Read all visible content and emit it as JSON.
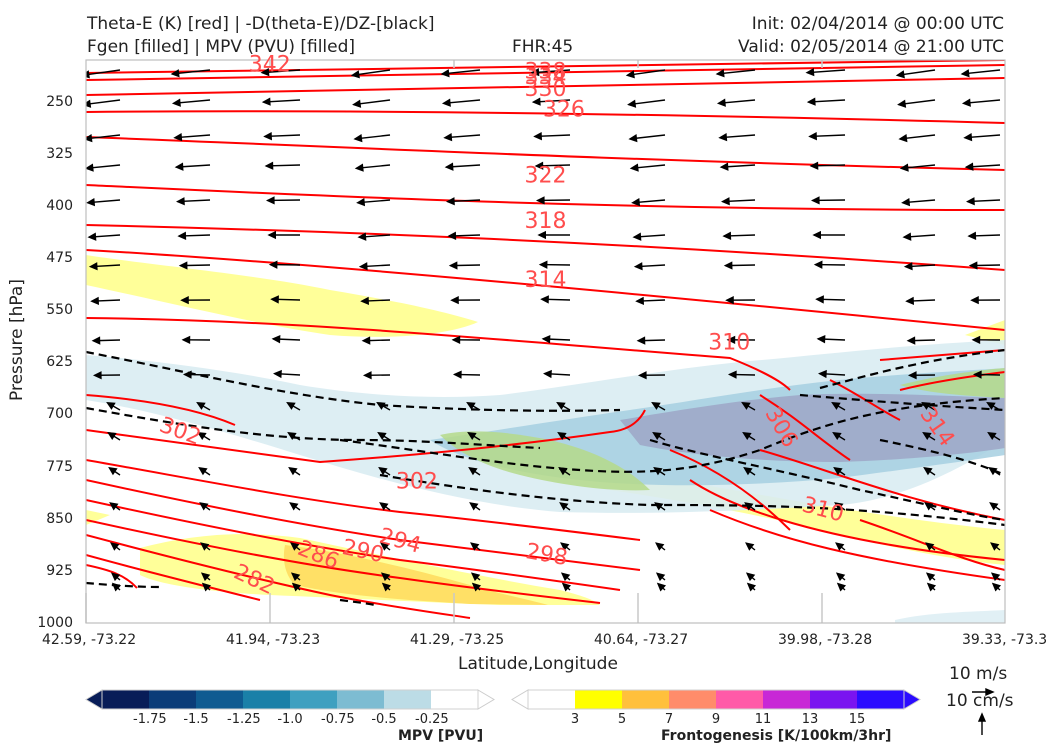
{
  "header": {
    "left_line1": "Theta-E (K) [red] | -D(theta-E)/DZ-[black]",
    "left_line2": "Fgen [filled] | MPV (PVU) [filled]",
    "center": "FHR:45",
    "init": "Init: 02/04/2014 @ 00:00 UTC",
    "valid": "Valid: 02/05/2014 @ 21:00 UTC"
  },
  "colors": {
    "theta_e": "#ff0000",
    "theta_e_label": "#ff4d4d",
    "stability": "#000000",
    "fgen_3": "#ffff99",
    "fgen_5": "#ffe066",
    "mpv_light": "#d9ecf2",
    "mpv_mid": "#a6cfe0",
    "mpv_dark": "#9fa8c8",
    "green_overlap": "#b5d98a"
  },
  "chart_data": {
    "type": "cross-section",
    "xlabel": "Latitude,Longitude",
    "ylabel": "Pressure [hPa]",
    "x_ticks": [
      "42.59, -73.22",
      "41.94, -73.23",
      "41.29, -73.25",
      "40.64, -73.27",
      "39.98, -73.28",
      "39.33, -73.3"
    ],
    "y_ticks": [
      250,
      325,
      400,
      475,
      550,
      625,
      700,
      775,
      850,
      925,
      1000
    ],
    "ylim": [
      1000,
      190
    ],
    "y_scale": "linear",
    "theta_e_contour_labels": [
      {
        "value": "342",
        "x": 0.2,
        "p": 195
      },
      {
        "value": "338",
        "x": 0.5,
        "p": 205
      },
      {
        "value": "334",
        "x": 0.5,
        "p": 213
      },
      {
        "value": "330",
        "x": 0.5,
        "p": 230
      },
      {
        "value": "326",
        "x": 0.52,
        "p": 260
      },
      {
        "value": "322",
        "x": 0.5,
        "p": 355
      },
      {
        "value": "318",
        "x": 0.5,
        "p": 420
      },
      {
        "value": "314",
        "x": 0.5,
        "p": 505
      },
      {
        "value": "310",
        "x": 0.7,
        "p": 595
      },
      {
        "value": "306",
        "x": 0.75,
        "p": 712
      },
      {
        "value": "314",
        "x": 0.92,
        "p": 712
      },
      {
        "value": "302",
        "x": 0.1,
        "p": 722
      },
      {
        "value": "302",
        "x": 0.36,
        "p": 795
      },
      {
        "value": "310",
        "x": 0.8,
        "p": 835
      },
      {
        "value": "294",
        "x": 0.34,
        "p": 880
      },
      {
        "value": "290",
        "x": 0.3,
        "p": 895
      },
      {
        "value": "286",
        "x": 0.25,
        "p": 900
      },
      {
        "value": "298",
        "x": 0.5,
        "p": 900
      },
      {
        "value": "282",
        "x": 0.18,
        "p": 935
      }
    ],
    "wind_reference": {
      "horizontal": "10 m/s",
      "vertical": "10 cm/s"
    }
  },
  "colorbars": {
    "mpv": {
      "title": "MPV [PVU]",
      "labels": [
        "-1.75",
        "-1.5",
        "-1.25",
        "-1.0",
        "-0.75",
        "-0.5",
        "-0.25"
      ],
      "colors": [
        "#081d58",
        "#0b3c78",
        "#0f5b91",
        "#1a80a8",
        "#3fa0c0",
        "#7dbcd2",
        "#bcdce6",
        "#ffffff"
      ]
    },
    "fgen": {
      "title": "Frontogenesis [K/100km/3hr]",
      "labels": [
        "3",
        "5",
        "7",
        "9",
        "11",
        "13",
        "15"
      ],
      "colors": [
        "#ffffff",
        "#ffff00",
        "#ffc03c",
        "#ff8c6a",
        "#ff5aa8",
        "#c828d6",
        "#7a14f0",
        "#2b0cff"
      ]
    }
  }
}
